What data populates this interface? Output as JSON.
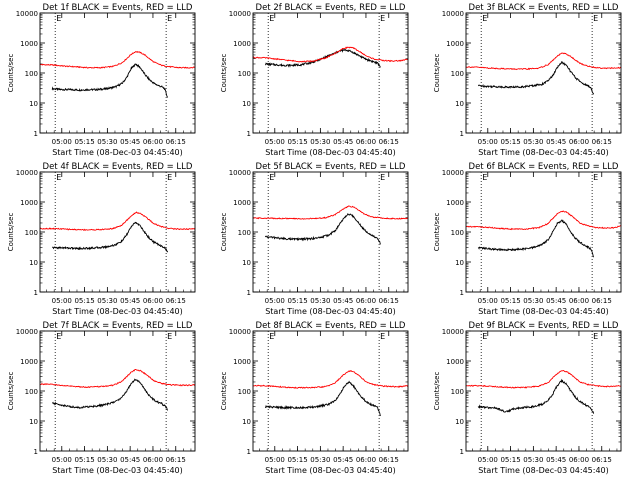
{
  "figure": {
    "time_axis_label": "Start Time (08-Dec-03 04:45:40)",
    "y_axis_label": "Counts/sec",
    "tick_labels_x": [
      "05:00",
      "05:15",
      "05:30",
      "05:45",
      "06:00",
      "06:15"
    ],
    "tick_labels_y": [
      "1",
      "10",
      "100",
      "1000",
      "10000"
    ],
    "colors": {
      "events": "#000000",
      "lld": "#ff0000",
      "axes": "#000000"
    }
  },
  "chart_data": [
    {
      "type": "line",
      "title": "Det 1f BLACK = Events, RED = LLD",
      "xlabel": "Start Time (08-Dec-03 04:45:40)",
      "ylabel": "Counts/sec",
      "x_units": "minutes after 04:45:40",
      "xlim": [
        0,
        102
      ],
      "ylim": [
        1,
        10000
      ],
      "yscale": "log",
      "marker_lines": [
        10,
        83
      ],
      "marker_label": "E",
      "series": [
        {
          "name": "Events",
          "color": "#000000",
          "x": [
            8,
            14,
            20,
            26,
            32,
            38,
            44,
            50,
            54,
            57,
            60,
            63,
            66,
            69,
            72,
            75,
            78,
            80,
            82,
            84
          ],
          "y": [
            30,
            28,
            28,
            27,
            28,
            28,
            30,
            35,
            45,
            70,
            140,
            200,
            150,
            90,
            60,
            45,
            38,
            35,
            30,
            15
          ]
        },
        {
          "name": "LLD",
          "color": "#ff0000",
          "x": [
            0,
            8,
            16,
            24,
            32,
            40,
            48,
            54,
            57,
            60,
            63,
            66,
            69,
            72,
            75,
            80,
            86,
            92,
            98,
            102
          ],
          "y": [
            190,
            185,
            170,
            160,
            150,
            150,
            165,
            220,
            300,
            420,
            520,
            480,
            400,
            300,
            230,
            180,
            160,
            150,
            150,
            155
          ]
        }
      ]
    },
    {
      "type": "line",
      "title": "Det 2f BLACK = Events, RED = LLD",
      "xlabel": "Start Time (08-Dec-03 04:45:40)",
      "ylabel": "Counts/sec",
      "x_units": "minutes after 04:45:40",
      "xlim": [
        0,
        102
      ],
      "ylim": [
        1,
        10000
      ],
      "yscale": "log",
      "marker_lines": [
        10,
        83
      ],
      "marker_label": "E",
      "series": [
        {
          "name": "Events",
          "color": "#000000",
          "x": [
            8,
            14,
            20,
            26,
            32,
            38,
            44,
            50,
            54,
            57,
            60,
            63,
            66,
            69,
            72,
            75,
            78,
            80,
            82,
            84
          ],
          "y": [
            200,
            190,
            180,
            180,
            190,
            220,
            280,
            380,
            460,
            540,
            580,
            560,
            480,
            400,
            330,
            280,
            250,
            230,
            210,
            160
          ]
        },
        {
          "name": "LLD",
          "color": "#ff0000",
          "x": [
            0,
            8,
            16,
            24,
            32,
            40,
            48,
            54,
            57,
            60,
            63,
            66,
            69,
            72,
            75,
            80,
            86,
            92,
            98,
            102
          ],
          "y": [
            330,
            320,
            290,
            260,
            240,
            250,
            320,
            450,
            560,
            680,
            720,
            680,
            560,
            450,
            360,
            290,
            260,
            250,
            260,
            290
          ]
        }
      ]
    },
    {
      "type": "line",
      "title": "Det 3f BLACK = Events, RED = LLD",
      "xlabel": "Start Time (08-Dec-03 04:45:40)",
      "ylabel": "Counts/sec",
      "x_units": "minutes after 04:45:40",
      "xlim": [
        0,
        102
      ],
      "ylim": [
        1,
        10000
      ],
      "yscale": "log",
      "marker_lines": [
        10,
        83
      ],
      "marker_label": "E",
      "series": [
        {
          "name": "Events",
          "color": "#000000",
          "x": [
            8,
            14,
            20,
            26,
            32,
            38,
            44,
            50,
            54,
            57,
            60,
            63,
            66,
            69,
            72,
            75,
            78,
            80,
            82,
            84
          ],
          "y": [
            38,
            36,
            35,
            34,
            34,
            35,
            38,
            42,
            55,
            80,
            150,
            230,
            180,
            110,
            70,
            52,
            42,
            38,
            32,
            20
          ]
        },
        {
          "name": "LLD",
          "color": "#ff0000",
          "x": [
            0,
            8,
            16,
            24,
            32,
            40,
            48,
            54,
            57,
            60,
            63,
            66,
            69,
            72,
            75,
            80,
            86,
            92,
            98,
            102
          ],
          "y": [
            160,
            155,
            145,
            140,
            135,
            135,
            145,
            190,
            260,
            360,
            460,
            430,
            350,
            270,
            210,
            170,
            150,
            145,
            145,
            150
          ]
        }
      ]
    },
    {
      "type": "line",
      "title": "Det 4f BLACK = Events, RED = LLD",
      "xlabel": "Start Time (08-Dec-03 04:45:40)",
      "ylabel": "Counts/sec",
      "x_units": "minutes after 04:45:40",
      "xlim": [
        0,
        102
      ],
      "ylim": [
        1,
        10000
      ],
      "yscale": "log",
      "marker_lines": [
        10,
        83
      ],
      "marker_label": "E",
      "series": [
        {
          "name": "Events",
          "color": "#000000",
          "x": [
            8,
            14,
            20,
            26,
            32,
            38,
            44,
            50,
            54,
            57,
            60,
            63,
            66,
            69,
            72,
            75,
            78,
            80,
            82,
            84
          ],
          "y": [
            30,
            30,
            29,
            28,
            29,
            30,
            32,
            38,
            50,
            80,
            150,
            210,
            160,
            95,
            62,
            46,
            38,
            34,
            30,
            22
          ]
        },
        {
          "name": "LLD",
          "color": "#ff0000",
          "x": [
            0,
            8,
            16,
            24,
            32,
            40,
            48,
            54,
            57,
            60,
            63,
            66,
            69,
            72,
            75,
            80,
            86,
            92,
            98,
            102
          ],
          "y": [
            130,
            130,
            125,
            120,
            118,
            120,
            130,
            170,
            240,
            340,
            450,
            420,
            330,
            250,
            190,
            150,
            130,
            125,
            125,
            130
          ]
        }
      ]
    },
    {
      "type": "line",
      "title": "Det 5f BLACK = Events, RED = LLD",
      "xlabel": "Start Time (08-Dec-03 04:45:40)",
      "ylabel": "Counts/sec",
      "x_units": "minutes after 04:45:40",
      "xlim": [
        0,
        102
      ],
      "ylim": [
        1,
        10000
      ],
      "yscale": "log",
      "marker_lines": [
        10,
        83
      ],
      "marker_label": "E",
      "series": [
        {
          "name": "Events",
          "color": "#000000",
          "x": [
            8,
            14,
            20,
            26,
            32,
            38,
            44,
            50,
            54,
            57,
            60,
            63,
            66,
            69,
            72,
            75,
            78,
            80,
            82,
            84
          ],
          "y": [
            70,
            65,
            60,
            58,
            58,
            60,
            65,
            80,
            110,
            180,
            300,
            400,
            330,
            220,
            140,
            100,
            80,
            70,
            60,
            40
          ]
        },
        {
          "name": "LLD",
          "color": "#ff0000",
          "x": [
            0,
            8,
            16,
            24,
            32,
            40,
            48,
            54,
            57,
            60,
            63,
            66,
            69,
            72,
            75,
            80,
            86,
            92,
            98,
            102
          ],
          "y": [
            290,
            290,
            285,
            280,
            275,
            280,
            300,
            380,
            480,
            600,
            720,
            680,
            560,
            440,
            360,
            310,
            290,
            280,
            280,
            290
          ]
        }
      ]
    },
    {
      "type": "line",
      "title": "Det 6f BLACK = Events, RED = LLD",
      "xlabel": "Start Time (08-Dec-03 04:45:40)",
      "ylabel": "Counts/sec",
      "x_units": "minutes after 04:45:40",
      "xlim": [
        0,
        102
      ],
      "ylim": [
        1,
        10000
      ],
      "yscale": "log",
      "marker_lines": [
        10,
        83
      ],
      "marker_label": "E",
      "series": [
        {
          "name": "Events",
          "color": "#000000",
          "x": [
            8,
            14,
            20,
            26,
            32,
            38,
            44,
            50,
            54,
            57,
            60,
            63,
            66,
            69,
            72,
            75,
            78,
            80,
            82,
            84
          ],
          "y": [
            30,
            28,
            26,
            25,
            26,
            27,
            30,
            38,
            55,
            100,
            190,
            240,
            180,
            100,
            62,
            45,
            36,
            32,
            28,
            15
          ]
        },
        {
          "name": "LLD",
          "color": "#ff0000",
          "x": [
            0,
            8,
            16,
            24,
            32,
            40,
            48,
            54,
            57,
            60,
            63,
            66,
            69,
            72,
            75,
            80,
            86,
            92,
            98,
            102
          ],
          "y": [
            150,
            150,
            140,
            130,
            125,
            125,
            140,
            190,
            280,
            400,
            500,
            460,
            360,
            270,
            200,
            160,
            140,
            135,
            140,
            160
          ]
        }
      ]
    },
    {
      "type": "line",
      "title": "Det 7f BLACK = Events, RED = LLD",
      "xlabel": "Start Time (08-Dec-03 04:45:40)",
      "ylabel": "Counts/sec",
      "x_units": "minutes after 04:45:40",
      "xlim": [
        0,
        102
      ],
      "ylim": [
        1,
        10000
      ],
      "yscale": "log",
      "marker_lines": [
        10,
        83
      ],
      "marker_label": "E",
      "series": [
        {
          "name": "Events",
          "color": "#000000",
          "x": [
            8,
            14,
            20,
            26,
            32,
            38,
            44,
            50,
            54,
            57,
            60,
            63,
            66,
            69,
            72,
            75,
            78,
            80,
            82,
            84
          ],
          "y": [
            40,
            34,
            30,
            28,
            30,
            32,
            36,
            45,
            62,
            100,
            180,
            250,
            190,
            110,
            70,
            50,
            42,
            38,
            32,
            24
          ]
        },
        {
          "name": "LLD",
          "color": "#ff0000",
          "x": [
            0,
            8,
            16,
            24,
            32,
            40,
            48,
            54,
            57,
            60,
            63,
            66,
            69,
            72,
            75,
            80,
            86,
            92,
            98,
            102
          ],
          "y": [
            170,
            165,
            150,
            140,
            135,
            140,
            155,
            210,
            300,
            420,
            520,
            480,
            380,
            290,
            220,
            180,
            160,
            155,
            155,
            160
          ]
        }
      ]
    },
    {
      "type": "line",
      "title": "Det 8f BLACK = Events, RED = LLD",
      "xlabel": "Start Time (08-Dec-03 04:45:40)",
      "ylabel": "Counts/sec",
      "x_units": "minutes after 04:45:40",
      "xlim": [
        0,
        102
      ],
      "ylim": [
        1,
        10000
      ],
      "yscale": "log",
      "marker_lines": [
        10,
        83
      ],
      "marker_label": "E",
      "series": [
        {
          "name": "Events",
          "color": "#000000",
          "x": [
            8,
            14,
            20,
            26,
            32,
            38,
            44,
            50,
            54,
            57,
            60,
            63,
            66,
            69,
            72,
            75,
            78,
            80,
            82,
            84
          ],
          "y": [
            30,
            29,
            28,
            28,
            28,
            29,
            31,
            36,
            48,
            75,
            140,
            200,
            150,
            90,
            58,
            42,
            35,
            32,
            28,
            15
          ]
        },
        {
          "name": "LLD",
          "color": "#ff0000",
          "x": [
            0,
            8,
            16,
            24,
            32,
            40,
            48,
            54,
            57,
            60,
            63,
            66,
            69,
            72,
            75,
            80,
            86,
            92,
            98,
            102
          ],
          "y": [
            150,
            150,
            140,
            130,
            128,
            130,
            140,
            185,
            260,
            360,
            470,
            440,
            350,
            260,
            195,
            160,
            145,
            140,
            140,
            150
          ]
        }
      ]
    },
    {
      "type": "line",
      "title": "Det 9f BLACK = Events, RED = LLD",
      "xlabel": "Start Time (08-Dec-03 04:45:40)",
      "ylabel": "Counts/sec",
      "x_units": "minutes after 04:45:40",
      "xlim": [
        0,
        102
      ],
      "ylim": [
        1,
        10000
      ],
      "yscale": "log",
      "marker_lines": [
        10,
        83
      ],
      "marker_label": "E",
      "series": [
        {
          "name": "Events",
          "color": "#000000",
          "x": [
            8,
            14,
            20,
            26,
            32,
            38,
            44,
            50,
            54,
            57,
            60,
            63,
            66,
            69,
            72,
            75,
            78,
            80,
            82,
            84
          ],
          "y": [
            30,
            28,
            27,
            20,
            26,
            28,
            30,
            36,
            48,
            78,
            150,
            220,
            170,
            100,
            62,
            45,
            36,
            32,
            26,
            18
          ]
        },
        {
          "name": "LLD",
          "color": "#ff0000",
          "x": [
            0,
            8,
            16,
            24,
            32,
            40,
            48,
            54,
            57,
            60,
            63,
            66,
            69,
            72,
            75,
            80,
            86,
            92,
            98,
            102
          ],
          "y": [
            150,
            150,
            145,
            135,
            130,
            132,
            145,
            190,
            270,
            380,
            480,
            450,
            360,
            270,
            200,
            165,
            148,
            142,
            142,
            150
          ]
        }
      ]
    }
  ]
}
